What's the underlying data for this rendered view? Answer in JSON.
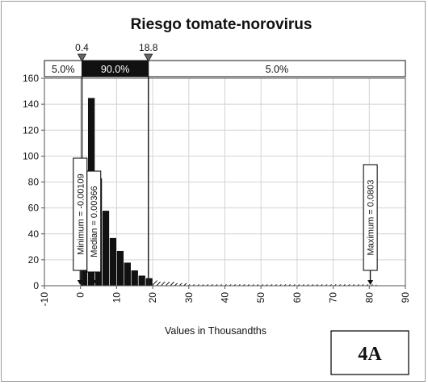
{
  "chart_data": {
    "type": "bar",
    "title": "Riesgo tomate-norovirus",
    "xlabel": "Values in Thousandths",
    "ylabel": "",
    "xlim": [
      -10,
      90
    ],
    "ylim": [
      0,
      160
    ],
    "xticks": [
      -10,
      0,
      10,
      20,
      30,
      40,
      50,
      60,
      70,
      80,
      90
    ],
    "yticks": [
      0,
      20,
      40,
      60,
      80,
      100,
      120,
      140,
      160
    ],
    "bin_width": 2,
    "bins_start": [
      0,
      2,
      4,
      6,
      8,
      10,
      12,
      14,
      16,
      18,
      20,
      22,
      24,
      26,
      28,
      30,
      32,
      34,
      36,
      38,
      40,
      42,
      44,
      46,
      48,
      50,
      52,
      54,
      56,
      58,
      60,
      62,
      64,
      66,
      68,
      70,
      72,
      74,
      76,
      78,
      80
    ],
    "values": [
      90,
      145,
      83,
      58,
      37,
      27,
      18,
      12,
      8,
      6,
      4,
      3,
      3,
      2,
      2,
      1,
      1,
      1,
      1,
      1,
      1,
      1,
      1,
      1,
      1,
      1,
      1,
      1,
      1,
      1,
      1,
      1,
      1,
      1,
      1,
      1,
      1,
      1,
      1,
      1,
      1
    ],
    "delimiters": {
      "left": {
        "value": 0.4,
        "label": "0.4"
      },
      "right": {
        "value": 18.8,
        "label": "18.8"
      }
    },
    "bands": [
      {
        "label": "5.0%"
      },
      {
        "label": "90.0%"
      },
      {
        "label": "5.0%"
      }
    ],
    "markers": [
      {
        "name": "minimum",
        "value": -0.1,
        "label": "Minimum = -0.00109"
      },
      {
        "name": "median",
        "value": 3.7,
        "label": "Median = 0.00366"
      },
      {
        "name": "maximum",
        "value": 80.3,
        "label": "Maximum = 0.0803"
      }
    ],
    "grid": true
  },
  "badge": {
    "label": "4A"
  },
  "colors": {
    "bar_dark": "#111111",
    "band_middle": "#111111",
    "grid": "#d4d4d4"
  }
}
